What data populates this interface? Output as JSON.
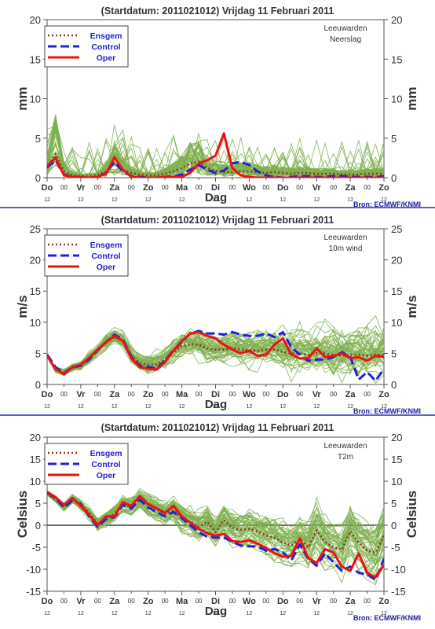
{
  "colors": {
    "ensemble": "#7fb04f",
    "ensgem": "#8b3a1a",
    "control": "#2020dd",
    "oper": "#ee1111",
    "axis_text": "#333333",
    "separator": "#2233aa",
    "source": "#1a1aa0"
  },
  "x_axis": {
    "label": "Dag",
    "day_labels": [
      "Do",
      "Vr",
      "Za",
      "Zo",
      "Ma",
      "Di",
      "Wo",
      "Do",
      "Vr",
      "Za",
      "Zo"
    ],
    "hour_tick": "12",
    "midnight_tick": "00",
    "x_range": [
      0,
      10
    ]
  },
  "legend": {
    "ensgem": "Ensgem",
    "control": "Control",
    "oper": "Oper"
  },
  "source": "Bron: ECMWF/KNMI",
  "chart_data": [
    {
      "type": "line",
      "title": "(Startdatum: 2011021012)   Vrijdag   11 Februari  2011",
      "station": "Leeuwarden",
      "variable": "Neerslag",
      "ylabel": "mm",
      "ylim": [
        0,
        20
      ],
      "yticks": [
        0,
        5,
        10,
        15,
        20
      ],
      "x": [
        0,
        0.25,
        0.5,
        0.75,
        1,
        1.25,
        1.5,
        1.75,
        2,
        2.25,
        2.5,
        2.75,
        3,
        3.25,
        3.5,
        3.75,
        4,
        4.25,
        4.5,
        4.75,
        5,
        5.25,
        5.5,
        5.75,
        6,
        6.25,
        6.5,
        6.75,
        7,
        7.25,
        7.5,
        7.75,
        8,
        8.25,
        8.5,
        8.75,
        9,
        9.25,
        9.5,
        9.75,
        10
      ],
      "series": [
        {
          "name": "Ensgem",
          "values": [
            1.2,
            3.0,
            0.8,
            0.3,
            0.2,
            0.2,
            0.3,
            0.8,
            1.8,
            1.0,
            0.6,
            0.4,
            0.3,
            0.3,
            0.5,
            0.8,
            1.2,
            1.8,
            2.0,
            1.2,
            0.9,
            0.7,
            0.7,
            0.8,
            0.8,
            0.7,
            0.6,
            0.7,
            0.6,
            0.5,
            0.6,
            0.6,
            0.5,
            0.5,
            0.5,
            0.4,
            0.4,
            0.4,
            0.5,
            0.5,
            0.5
          ]
        },
        {
          "name": "Control",
          "values": [
            1.3,
            2.2,
            0.4,
            0.1,
            0.0,
            0.0,
            0.1,
            0.6,
            2.0,
            0.8,
            0.2,
            0.1,
            0.0,
            0.0,
            0.1,
            0.2,
            0.4,
            1.0,
            1.6,
            1.0,
            0.6,
            0.9,
            1.8,
            2.0,
            1.6,
            0.8,
            0.3,
            0.1,
            0.0,
            0.1,
            0.2,
            0.2,
            0.1,
            0.1,
            0.2,
            0.2,
            0.1,
            0.1,
            0.1,
            0.1,
            0.2
          ]
        },
        {
          "name": "Oper",
          "values": [
            1.5,
            2.5,
            0.3,
            0.1,
            0.1,
            0.0,
            0.1,
            0.5,
            2.6,
            1.0,
            0.1,
            0.0,
            0.0,
            0.0,
            0.1,
            0.1,
            0.1,
            0.6,
            1.8,
            2.2,
            2.8,
            5.6,
            1.2,
            0.3,
            0.1,
            0.0,
            0.0,
            0.0,
            0.0,
            0.0,
            0.0,
            0.0,
            0.0,
            0.0,
            0.0,
            0.0,
            0.0,
            0.0,
            0.0,
            0.0,
            0.0
          ]
        }
      ]
    },
    {
      "type": "line",
      "title": "(Startdatum: 2011021012)   Vrijdag   11 Februari  2011",
      "station": "Leeuwarden",
      "variable": "10m wind",
      "ylabel": "m/s",
      "ylim": [
        0,
        25
      ],
      "yticks": [
        0,
        5,
        10,
        15,
        20,
        25
      ],
      "x": [
        0,
        0.25,
        0.5,
        0.75,
        1,
        1.25,
        1.5,
        1.75,
        2,
        2.25,
        2.5,
        2.75,
        3,
        3.25,
        3.5,
        3.75,
        4,
        4.25,
        4.5,
        4.75,
        5,
        5.25,
        5.5,
        5.75,
        6,
        6.25,
        6.5,
        6.75,
        7,
        7.25,
        7.5,
        7.75,
        8,
        8.25,
        8.5,
        8.75,
        9,
        9.25,
        9.5,
        9.75,
        10
      ],
      "series": [
        {
          "name": "Ensgem",
          "values": [
            4.6,
            2.4,
            1.8,
            2.6,
            3.0,
            4.2,
            5.5,
            6.8,
            7.6,
            7.0,
            4.6,
            3.4,
            3.2,
            3.2,
            4.0,
            5.2,
            6.2,
            6.5,
            6.4,
            5.8,
            5.6,
            5.6,
            5.8,
            5.6,
            5.5,
            5.4,
            5.6,
            5.6,
            5.2,
            5.0,
            5.0,
            4.8,
            5.0,
            5.0,
            4.8,
            4.6,
            4.8,
            4.8,
            4.6,
            4.8,
            4.8
          ]
        },
        {
          "name": "Control",
          "values": [
            4.8,
            2.8,
            1.8,
            2.8,
            3.0,
            4.0,
            5.5,
            6.8,
            8.0,
            7.2,
            4.5,
            3.0,
            2.8,
            2.6,
            3.8,
            5.5,
            6.8,
            8.2,
            8.6,
            8.2,
            8.2,
            8.0,
            8.4,
            8.0,
            7.8,
            7.8,
            8.2,
            7.6,
            8.4,
            6.0,
            4.8,
            3.8,
            4.0,
            4.0,
            4.4,
            5.2,
            4.4,
            0.8,
            2.0,
            0.6,
            2.5
          ]
        },
        {
          "name": "Oper",
          "values": [
            4.6,
            2.5,
            1.6,
            2.8,
            3.2,
            4.3,
            5.6,
            6.8,
            7.8,
            7.0,
            4.2,
            2.8,
            2.5,
            2.4,
            3.6,
            5.4,
            7.0,
            8.2,
            8.4,
            7.8,
            7.4,
            6.4,
            5.6,
            5.0,
            5.4,
            4.6,
            4.8,
            6.4,
            7.4,
            4.8,
            4.2,
            4.2,
            5.8,
            4.4,
            4.6,
            5.0,
            4.2,
            4.4,
            3.8,
            4.6,
            4.4
          ]
        }
      ]
    },
    {
      "type": "line",
      "title": "(Startdatum: 2011021012)   Vrijdag   11 Februari  2011",
      "station": "Leeuwarden",
      "variable": "T2m",
      "ylabel": "Celsius",
      "ylim": [
        -15,
        20
      ],
      "yticks": [
        -15,
        -10,
        -5,
        0,
        5,
        10,
        15,
        20
      ],
      "x": [
        0,
        0.25,
        0.5,
        0.75,
        1,
        1.25,
        1.5,
        1.75,
        2,
        2.25,
        2.5,
        2.75,
        3,
        3.25,
        3.5,
        3.75,
        4,
        4.25,
        4.5,
        4.75,
        5,
        5.25,
        5.5,
        5.75,
        6,
        6.25,
        6.5,
        6.75,
        7,
        7.25,
        7.5,
        7.75,
        8,
        8.25,
        8.5,
        8.75,
        9,
        9.25,
        9.5,
        9.75,
        10
      ],
      "series": [
        {
          "name": "Ensgem",
          "values": [
            7.2,
            5.8,
            4.2,
            6.0,
            4.6,
            2.8,
            0.2,
            1.4,
            2.6,
            4.6,
            4.2,
            5.8,
            4.6,
            3.6,
            2.6,
            3.4,
            1.8,
            0.8,
            -0.4,
            0.8,
            -1.6,
            1.2,
            -0.6,
            -1.0,
            -0.8,
            -1.4,
            -2.4,
            -2.8,
            -4.0,
            -4.6,
            -3.2,
            -5.0,
            -1.2,
            -3.8,
            -5.0,
            -5.6,
            -1.4,
            -4.0,
            -5.8,
            -6.2,
            -2.4
          ]
        },
        {
          "name": "Control",
          "values": [
            7.4,
            6.2,
            4.0,
            5.6,
            4.8,
            2.0,
            -0.4,
            1.4,
            1.8,
            4.6,
            3.8,
            5.8,
            4.0,
            3.0,
            2.0,
            3.0,
            1.6,
            0.0,
            -1.6,
            -2.6,
            -2.8,
            -2.8,
            -3.8,
            -4.6,
            -4.8,
            -4.8,
            -5.8,
            -5.4,
            -6.2,
            -8.0,
            -4.4,
            -7.6,
            -9.2,
            -6.4,
            -8.4,
            -10.4,
            -9.4,
            -10.8,
            -11.2,
            -12.4,
            -7.6
          ]
        },
        {
          "name": "Oper",
          "values": [
            7.6,
            6.4,
            4.6,
            6.2,
            4.4,
            2.4,
            0.0,
            2.0,
            2.0,
            5.2,
            4.4,
            6.6,
            4.8,
            3.8,
            2.8,
            4.4,
            2.0,
            0.6,
            -0.8,
            -1.8,
            -2.4,
            -2.0,
            -3.6,
            -3.8,
            -3.4,
            -4.2,
            -5.2,
            -6.4,
            -7.2,
            -7.0,
            -3.0,
            -7.4,
            -8.6,
            -5.4,
            -6.2,
            -9.4,
            -10.4,
            -6.4,
            -10.8,
            -11.8,
            -9.0
          ]
        }
      ]
    }
  ]
}
